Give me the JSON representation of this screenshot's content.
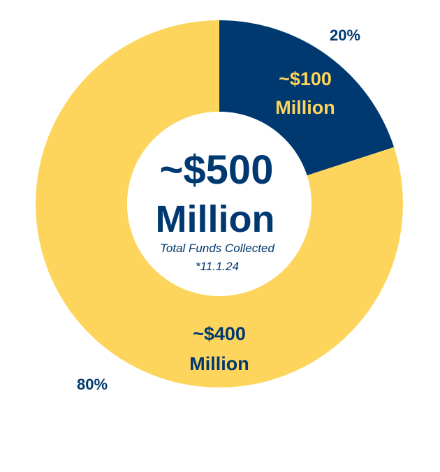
{
  "chart_data": {
    "type": "pie",
    "style": "donut",
    "slices": [
      {
        "percent_label": "20%",
        "value": 20,
        "amount_label": "~$100",
        "amount_unit": "Million",
        "color": "#003870",
        "text_color": "#FDD55C"
      },
      {
        "percent_label": "80%",
        "value": 80,
        "amount_label": "~$400",
        "amount_unit": "Million",
        "color": "#FDD55C",
        "text_color": "#003870"
      }
    ],
    "center": {
      "value": "~$500",
      "unit": "Million",
      "caption": "Total Funds Collected",
      "date": "*11.1.24"
    },
    "label_color": "#003870",
    "background": "#FFFFFF"
  }
}
